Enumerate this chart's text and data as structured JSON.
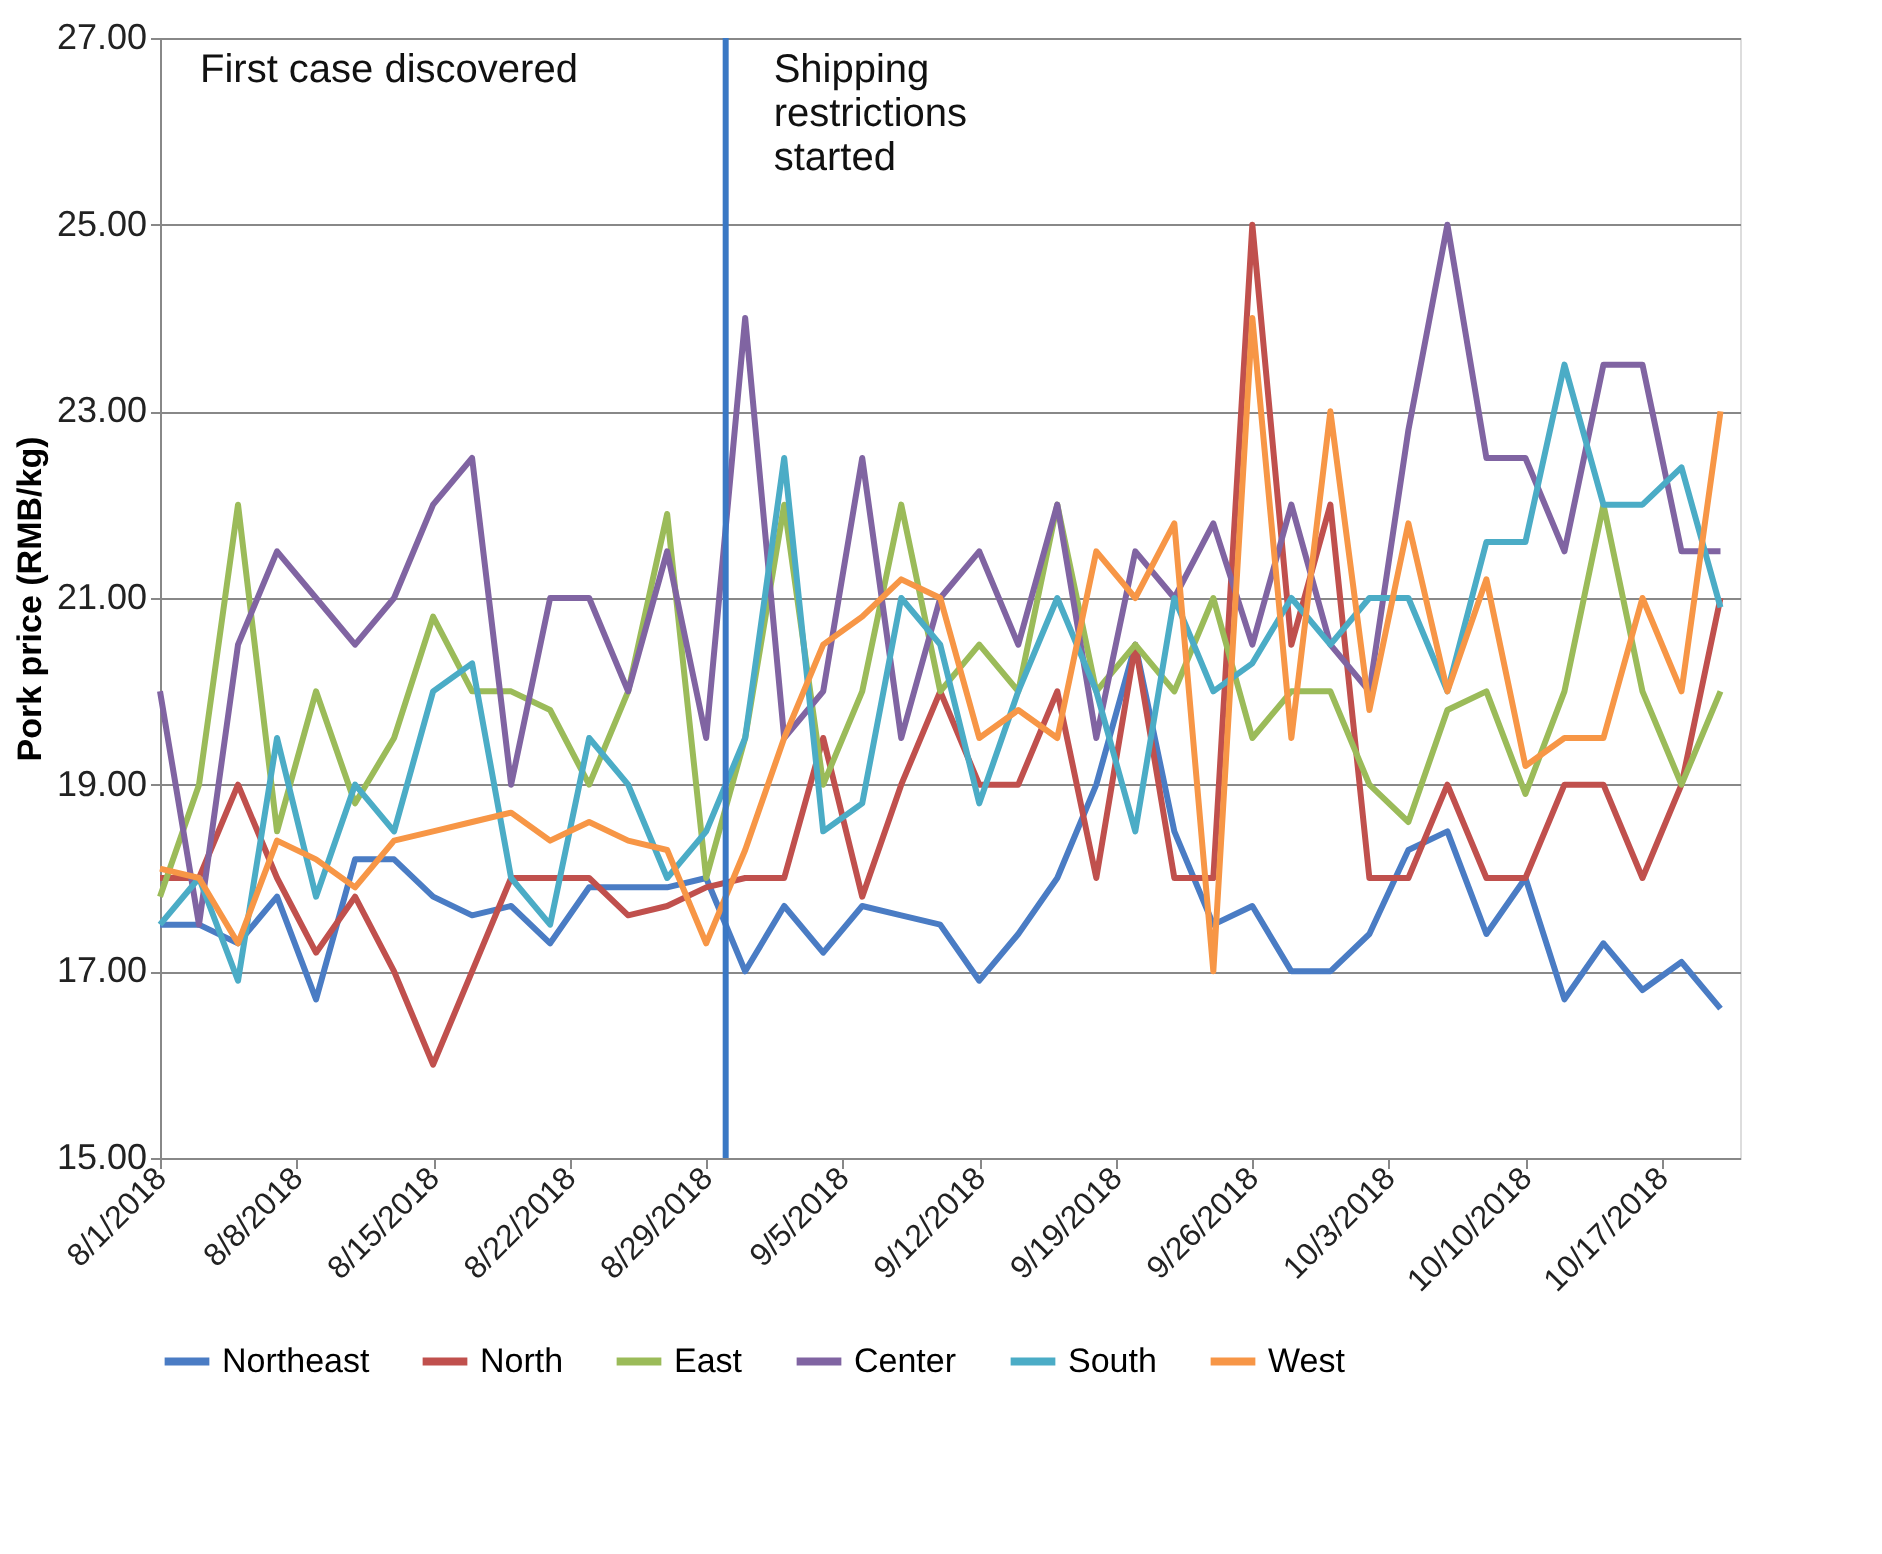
{
  "chart_data": {
    "type": "line",
    "ylabel": "Pork price (RMB/kg)",
    "x": [
      "2018-08-01",
      "2018-08-03",
      "2018-08-05",
      "2018-08-07",
      "2018-08-09",
      "2018-08-11",
      "2018-08-13",
      "2018-08-15",
      "2018-08-17",
      "2018-08-19",
      "2018-08-21",
      "2018-08-23",
      "2018-08-25",
      "2018-08-27",
      "2018-08-29",
      "2018-08-31",
      "2018-09-02",
      "2018-09-04",
      "2018-09-06",
      "2018-09-08",
      "2018-09-10",
      "2018-09-12",
      "2018-09-14",
      "2018-09-16",
      "2018-09-18",
      "2018-09-20",
      "2018-09-22",
      "2018-09-24",
      "2018-09-26",
      "2018-09-28",
      "2018-09-30",
      "2018-10-02",
      "2018-10-04",
      "2018-10-06",
      "2018-10-08",
      "2018-10-10",
      "2018-10-12",
      "2018-10-14",
      "2018-10-16",
      "2018-10-18",
      "2018-10-20"
    ],
    "series": [
      {
        "name": "Northeast",
        "color": "#4a7cc4",
        "values": [
          17.5,
          17.5,
          17.3,
          17.8,
          16.7,
          18.2,
          18.2,
          17.8,
          17.6,
          17.7,
          17.3,
          17.9,
          17.9,
          17.9,
          18.0,
          17.0,
          17.7,
          17.2,
          17.7,
          17.6,
          17.5,
          16.9,
          17.4,
          18.0,
          19.0,
          20.5,
          18.5,
          17.5,
          17.7,
          17.0,
          17.0,
          17.4,
          18.3,
          18.5,
          17.4,
          18.0,
          16.7,
          17.3,
          16.8,
          17.1,
          16.6
        ]
      },
      {
        "name": "North",
        "color": "#c0504d",
        "values": [
          18.0,
          18.0,
          19.0,
          18.0,
          17.2,
          17.8,
          17.0,
          16.0,
          17.0,
          18.0,
          18.0,
          18.0,
          17.6,
          17.7,
          17.9,
          18.0,
          18.0,
          19.5,
          17.8,
          19.0,
          20.0,
          19.0,
          19.0,
          20.0,
          18.0,
          20.5,
          18.0,
          18.0,
          25.0,
          20.5,
          22.0,
          18.0,
          18.0,
          19.0,
          18.0,
          18.0,
          19.0,
          19.0,
          18.0,
          19.0,
          21.0
        ]
      },
      {
        "name": "East",
        "color": "#9bbb59",
        "values": [
          17.8,
          19.0,
          22.0,
          18.5,
          20.0,
          18.8,
          19.5,
          20.8,
          20.0,
          20.0,
          19.8,
          19.0,
          20.0,
          21.9,
          18.0,
          19.5,
          22.0,
          19.0,
          20.0,
          22.0,
          20.0,
          20.5,
          20.0,
          22.0,
          20.0,
          20.5,
          20.0,
          21.0,
          19.5,
          20.0,
          20.0,
          19.0,
          18.6,
          19.8,
          20.0,
          18.9,
          20.0,
          22.0,
          20.0,
          19.0,
          20.0
        ]
      },
      {
        "name": "Center",
        "color": "#8064a2",
        "values": [
          20.0,
          17.5,
          20.5,
          21.5,
          21.0,
          20.5,
          21.0,
          22.0,
          22.5,
          19.0,
          21.0,
          21.0,
          20.0,
          21.5,
          19.5,
          24.0,
          19.5,
          20.0,
          22.5,
          19.5,
          21.0,
          21.5,
          20.5,
          22.0,
          19.5,
          21.5,
          21.0,
          21.8,
          20.5,
          22.0,
          20.5,
          20.0,
          22.8,
          25.0,
          22.5,
          22.5,
          21.5,
          23.5,
          23.5,
          21.5,
          21.5
        ]
      },
      {
        "name": "South",
        "color": "#4bacc6",
        "values": [
          17.5,
          18.0,
          16.9,
          19.5,
          17.8,
          19.0,
          18.5,
          20.0,
          20.3,
          18.0,
          17.5,
          19.5,
          19.0,
          18.0,
          18.5,
          19.5,
          22.5,
          18.5,
          18.8,
          21.0,
          20.5,
          18.8,
          20.0,
          21.0,
          20.0,
          18.5,
          21.0,
          20.0,
          20.3,
          21.0,
          20.5,
          21.0,
          21.0,
          20.0,
          21.6,
          21.6,
          23.5,
          22.0,
          22.0,
          22.4,
          20.9
        ]
      },
      {
        "name": "West",
        "color": "#f79646",
        "values": [
          18.1,
          18.0,
          17.3,
          18.4,
          18.2,
          17.9,
          18.4,
          18.5,
          18.6,
          18.7,
          18.4,
          18.6,
          18.4,
          18.3,
          17.3,
          18.3,
          19.5,
          20.5,
          20.8,
          21.2,
          21.0,
          19.5,
          19.8,
          19.5,
          21.5,
          21.0,
          21.8,
          17.0,
          24.0,
          19.5,
          23.0,
          19.8,
          21.8,
          20.0,
          21.2,
          19.2,
          19.5,
          19.5,
          21.0,
          20.0,
          23.0
        ]
      }
    ],
    "xlim": [
      "2018-08-01",
      "2018-10-21"
    ],
    "xticks": [
      {
        "value": "2018-08-01",
        "label": "8/1/2018"
      },
      {
        "value": "2018-08-08",
        "label": "8/8/2018"
      },
      {
        "value": "2018-08-15",
        "label": "8/15/2018"
      },
      {
        "value": "2018-08-22",
        "label": "8/22/2018"
      },
      {
        "value": "2018-08-29",
        "label": "8/29/2018"
      },
      {
        "value": "2018-09-05",
        "label": "9/5/2018"
      },
      {
        "value": "2018-09-12",
        "label": "9/12/2018"
      },
      {
        "value": "2018-09-19",
        "label": "9/19/2018"
      },
      {
        "value": "2018-09-26",
        "label": "9/26/2018"
      },
      {
        "value": "2018-10-03",
        "label": "10/3/2018"
      },
      {
        "value": "2018-10-10",
        "label": "10/10/2018"
      },
      {
        "value": "2018-10-17",
        "label": "10/17/2018"
      }
    ],
    "ylim": [
      15,
      27
    ],
    "yticks": [
      {
        "value": 15,
        "label": "15.00"
      },
      {
        "value": 17,
        "label": "17.00"
      },
      {
        "value": 19,
        "label": "19.00"
      },
      {
        "value": 21,
        "label": "21.00"
      },
      {
        "value": 23,
        "label": "23.00"
      },
      {
        "value": 25,
        "label": "25.00"
      },
      {
        "value": 27,
        "label": "27.00"
      }
    ],
    "ref_lines": [
      {
        "axis": "x",
        "value": "2018-08-30",
        "label": "Shipping restrictions started",
        "color": "#3a78c4"
      }
    ],
    "annotations": [
      "First case discovered"
    ],
    "grid": "y",
    "legend": "bottom",
    "marker": "none",
    "line_style": "solid"
  }
}
